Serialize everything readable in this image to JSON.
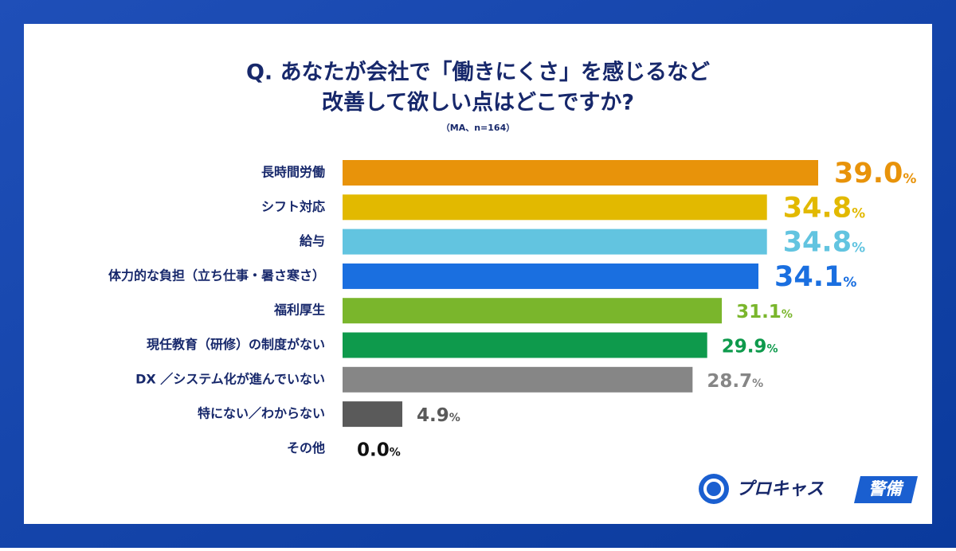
{
  "chart_data": {
    "type": "hbar",
    "title_lines": [
      "Q. あなたが会社で「働きにくさ」を感じるなど",
      "改善して欲しい点はどこですか?"
    ],
    "subtitle": "（MA、n=164）",
    "categories": [
      "長時間労働",
      "シフト対応",
      "給与",
      "体力的な負担（立ち仕事・暑さ寒さ）",
      "福利厚生",
      "現任教育（研修）の制度がない",
      "DX ／システム化が進んでいない",
      "特にない／わからない",
      "その他"
    ],
    "values": [
      39.0,
      34.8,
      34.8,
      34.1,
      31.1,
      29.9,
      28.7,
      4.9,
      0.0
    ],
    "value_labels": [
      "39.0",
      "34.8",
      "34.8",
      "34.1",
      "31.1",
      "29.9",
      "28.7",
      "4.9",
      "0.0"
    ],
    "value_unit": "%",
    "colors": [
      "#e8930a",
      "#e2b900",
      "#62c4e0",
      "#1a6fe0",
      "#7ab62c",
      "#0e9a4c",
      "#868686",
      "#5a5a5a",
      "#111111"
    ]
  },
  "logo": {
    "text": "プロキャス",
    "badge": "警備"
  }
}
